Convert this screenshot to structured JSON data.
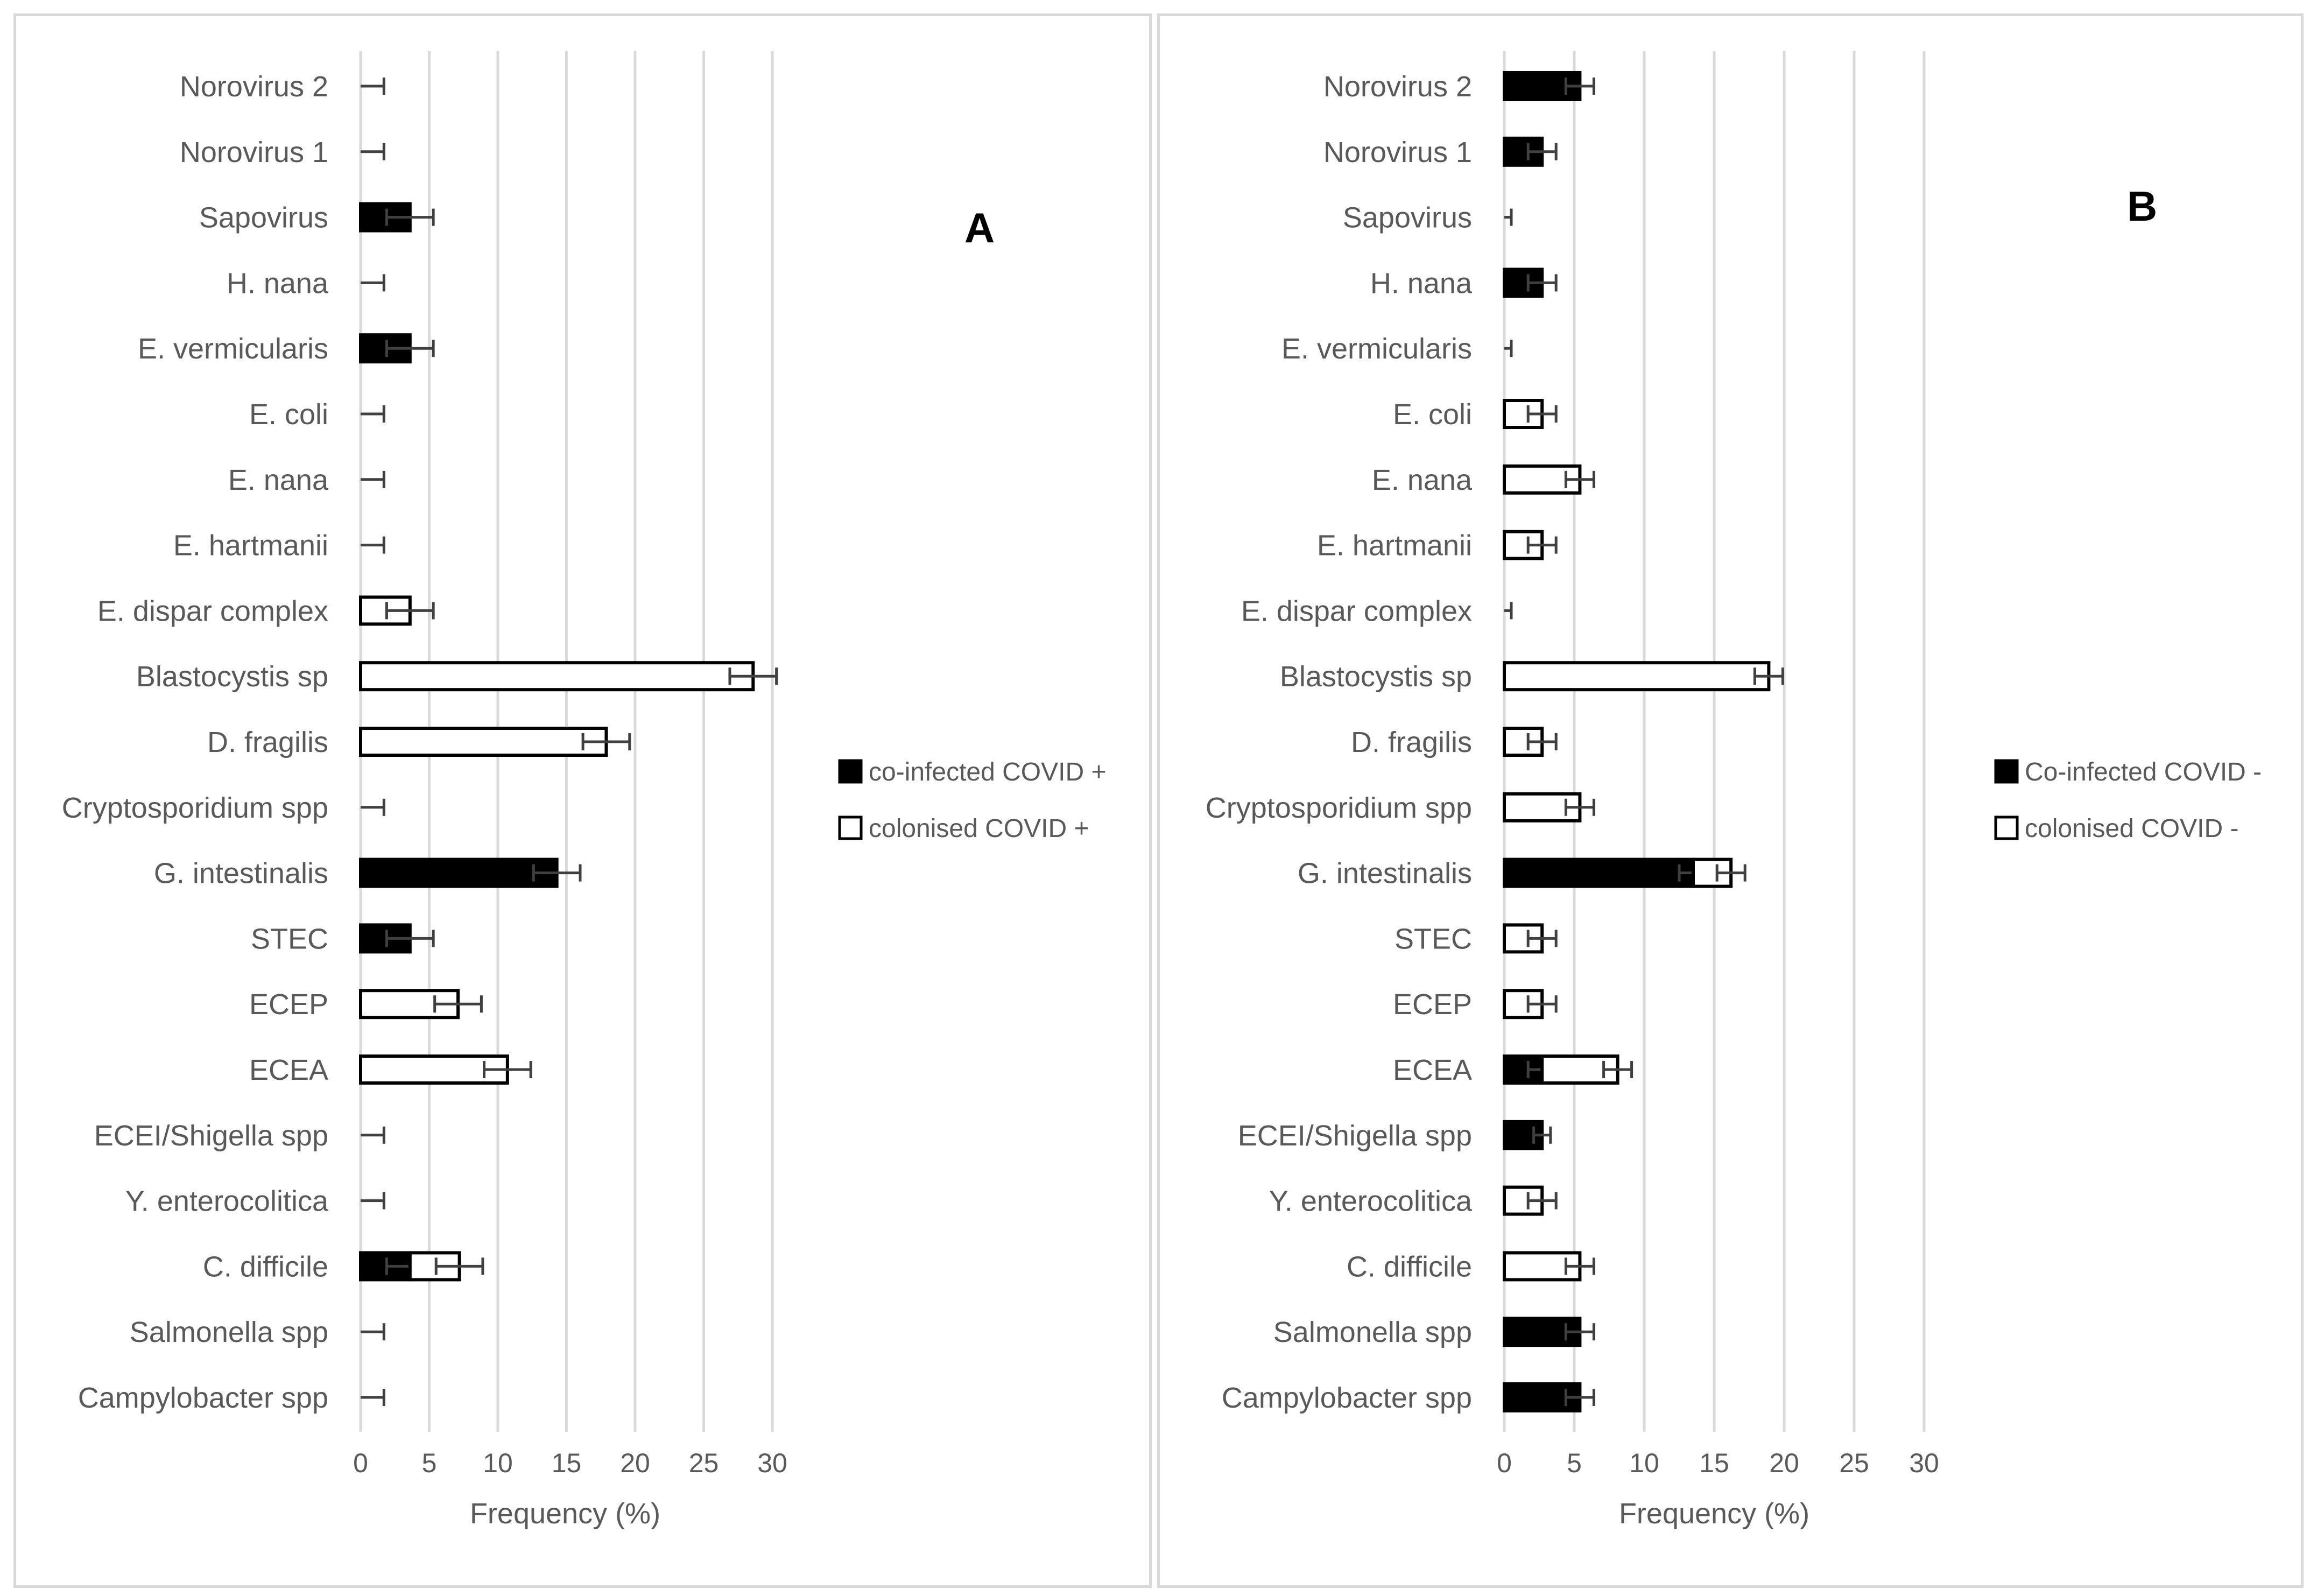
{
  "colors": {
    "cofill": "#000000",
    "colfill": "#ffffff",
    "stroke": "#000000",
    "grid": "#d9d9d9",
    "errbar": "#404040"
  },
  "chart_data": [
    {
      "type": "bar",
      "orientation": "horizontal",
      "stacked": true,
      "panel": "A",
      "xlabel": "Frequency (%)",
      "xlim": [
        0,
        30
      ],
      "xticks": [
        "0",
        "5",
        "10",
        "15",
        "20",
        "25",
        "30"
      ],
      "legend_position": "right",
      "categories": [
        "Norovirus 2",
        "Norovirus 1",
        "Sapovirus",
        "H. nana",
        "E. vermicularis",
        "E. coli",
        "E. nana",
        "E. hartmanii",
        "E. dispar complex",
        "Blastocystis sp",
        "D. fragilis",
        "Cryptosporidium spp",
        "G. intestinalis",
        "STEC",
        "ECEP",
        "ECEA",
        "ECEI/Shigella spp",
        "Y. enterocolitica",
        "C. difficile",
        "Salmonella spp",
        "Campylobacter spp"
      ],
      "series": [
        {
          "name": "co-infected COVID +",
          "fill": "black",
          "values": [
            0,
            0,
            3.6,
            0,
            3.6,
            0,
            0,
            0,
            0,
            0,
            0,
            0,
            14.3,
            3.6,
            0,
            0,
            0,
            0,
            3.6,
            0,
            0
          ],
          "error": [
            1.7,
            1.7,
            1.7,
            1.7,
            1.7,
            1.7,
            1.7,
            1.7,
            1.7,
            1.7,
            1.7,
            1.7,
            1.7,
            1.7,
            1.7,
            1.7,
            1.7,
            1.7,
            1.7,
            1.7,
            1.7
          ]
        },
        {
          "name": "colonised COVID +",
          "fill": "white",
          "values": [
            0,
            0,
            0,
            0,
            0,
            0,
            0,
            0,
            3.6,
            28.6,
            17.9,
            0,
            0,
            0,
            7.1,
            10.7,
            0,
            0,
            3.6,
            0,
            0
          ],
          "error": [
            1.7,
            1.7,
            1.7,
            1.7,
            1.7,
            1.7,
            1.7,
            1.7,
            1.7,
            1.7,
            1.7,
            1.7,
            1.7,
            1.7,
            1.7,
            1.7,
            1.7,
            1.7,
            1.7,
            1.7,
            1.7
          ]
        }
      ]
    },
    {
      "type": "bar",
      "orientation": "horizontal",
      "stacked": true,
      "panel": "B",
      "xlabel": "Frequency (%)",
      "xlim": [
        0,
        30
      ],
      "xticks": [
        "0",
        "5",
        "10",
        "15",
        "20",
        "25",
        "30"
      ],
      "legend_position": "right",
      "categories": [
        "Norovirus 2",
        "Norovirus 1",
        "Sapovirus",
        "H. nana",
        "E. vermicularis",
        "E. coli",
        "E. nana",
        "E. hartmanii",
        "E. dispar complex",
        "Blastocystis sp",
        "D. fragilis",
        "Cryptosporidium spp",
        "G. intestinalis",
        "STEC",
        "ECEP",
        "ECEA",
        "ECEI/Shigella spp",
        "Y. enterocolitica",
        "C. difficile",
        "Salmonella spp",
        "Campylobacter spp"
      ],
      "series": [
        {
          "name": "Co-infected COVID -",
          "fill": "black",
          "values": [
            5.4,
            2.7,
            0,
            2.7,
            0,
            0,
            0,
            0,
            0,
            0,
            0,
            0,
            13.5,
            0,
            0,
            2.7,
            2.7,
            0,
            0,
            5.4,
            5.4
          ],
          "error": [
            1.0,
            1.0,
            0.5,
            1.0,
            0.5,
            1.0,
            1.0,
            1.0,
            0.5,
            1.0,
            1.0,
            1.0,
            1.0,
            1.0,
            1.0,
            1.0,
            0.6,
            1.0,
            1.0,
            1.0,
            1.0
          ]
        },
        {
          "name": "colonised COVID -",
          "fill": "white",
          "values": [
            0,
            0,
            0,
            0,
            0,
            2.7,
            5.4,
            2.7,
            0,
            18.9,
            2.7,
            5.4,
            2.7,
            2.7,
            2.7,
            5.4,
            0,
            2.7,
            5.4,
            0,
            0
          ],
          "error": [
            1.0,
            1.0,
            0.5,
            1.0,
            0.5,
            1.0,
            1.0,
            1.0,
            0.5,
            1.0,
            1.0,
            1.0,
            1.0,
            1.0,
            1.0,
            1.0,
            0.6,
            1.0,
            1.0,
            1.0,
            1.0
          ]
        }
      ]
    }
  ]
}
